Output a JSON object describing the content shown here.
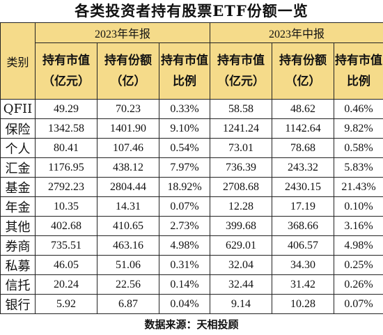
{
  "title": "各类投资者持有股票ETF份额一览",
  "header": {
    "category": "类别",
    "groups": [
      "2023年年报",
      "2023年中报"
    ],
    "columns": [
      "持有市值（亿元）",
      "持有份额（亿）",
      "持有市值比例",
      "持有市值（亿元）",
      "持有份额（亿）",
      "持有市值比例"
    ]
  },
  "rows": [
    [
      "QFII",
      "49.29",
      "70.23",
      "0.33%",
      "58.58",
      "48.62",
      "0.46%"
    ],
    [
      "保险",
      "1342.58",
      "1401.90",
      "9.10%",
      "1241.24",
      "1142.64",
      "9.82%"
    ],
    [
      "个人",
      "80.41",
      "107.46",
      "0.54%",
      "73.01",
      "78.68",
      "0.58%"
    ],
    [
      "汇金",
      "1176.95",
      "438.12",
      "7.97%",
      "736.39",
      "243.32",
      "5.83%"
    ],
    [
      "基金",
      "2792.23",
      "2804.44",
      "18.92%",
      "2708.68",
      "2430.15",
      "21.43%"
    ],
    [
      "年金",
      "10.35",
      "14.31",
      "0.07%",
      "12.28",
      "17.19",
      "0.10%"
    ],
    [
      "其他",
      "402.68",
      "410.65",
      "2.73%",
      "399.68",
      "368.66",
      "3.16%"
    ],
    [
      "券商",
      "735.51",
      "463.16",
      "4.98%",
      "629.01",
      "406.57",
      "4.98%"
    ],
    [
      "私募",
      "46.05",
      "51.06",
      "0.31%",
      "32.04",
      "34.30",
      "0.25%"
    ],
    [
      "信托",
      "20.24",
      "22.56",
      "0.14%",
      "32.44",
      "31.42",
      "0.26%"
    ],
    [
      "银行",
      "5.92",
      "6.87",
      "0.04%",
      "9.14",
      "10.28",
      "0.07%"
    ]
  ],
  "source": "数据来源：天相投顾",
  "colors": {
    "header_bg": "#f5db8a",
    "border": "#222222"
  }
}
